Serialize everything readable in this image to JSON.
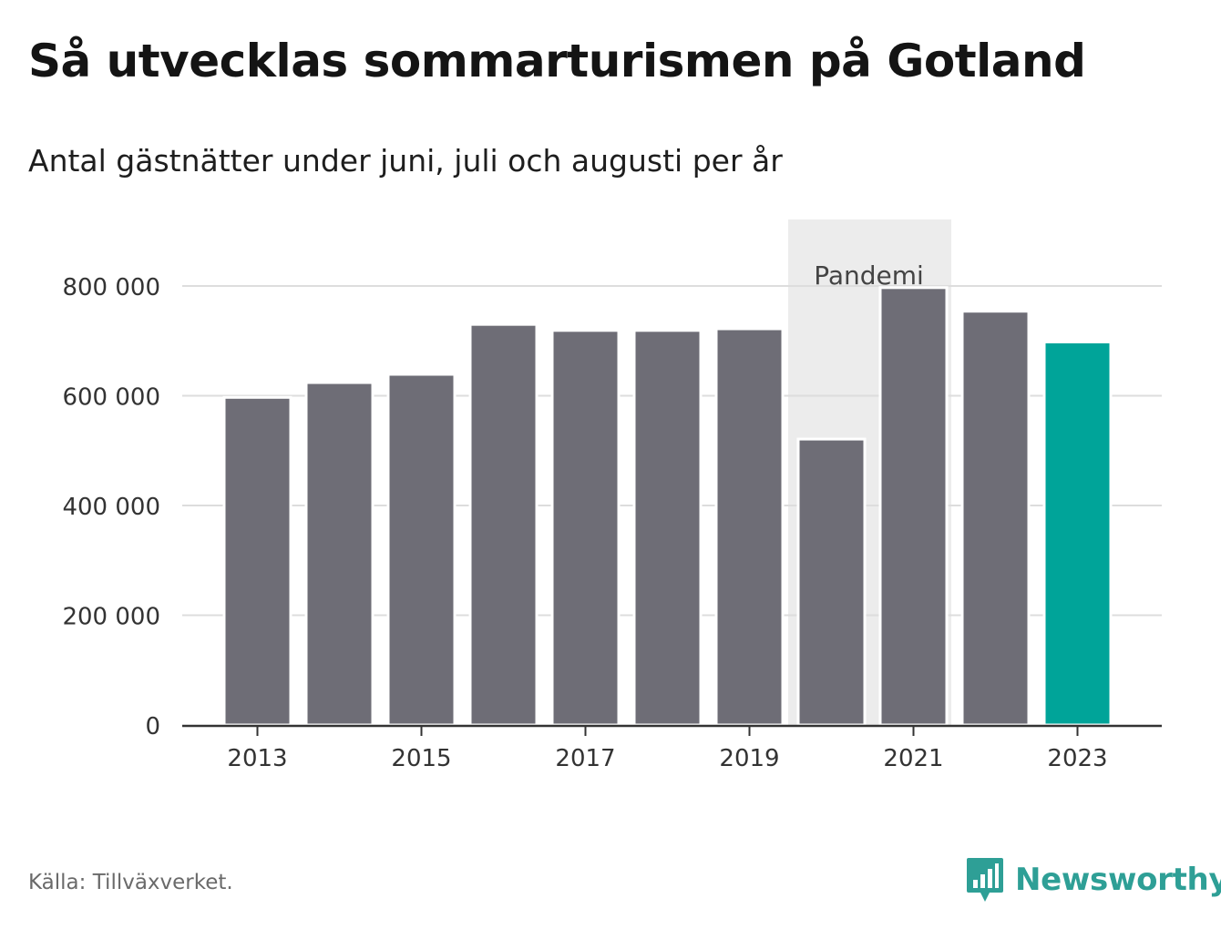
{
  "title": "Så utvecklas sommarturismen på Gotland",
  "subtitle": "Antal gästnätter under juni, juli och augusti per år",
  "source": "Källa: Tillväxverket.",
  "brand": {
    "name": "Newsworthy",
    "icon": "newsworthy-bar-chart-speech-bubble-icon"
  },
  "colors": {
    "bar": "#6e6d76",
    "highlight": "#00a499",
    "band": "#ececec",
    "grid": "#dddddd",
    "axis": "#333333",
    "brand": "#2e9f96"
  },
  "chart_data": {
    "type": "bar",
    "categories": [
      "2013",
      "2014",
      "2015",
      "2016",
      "2017",
      "2018",
      "2019",
      "2020",
      "2021",
      "2022",
      "2023"
    ],
    "values": [
      597000,
      624000,
      639000,
      730000,
      719000,
      719000,
      722000,
      521000,
      797000,
      754000,
      698000
    ],
    "highlight_category": "2023",
    "ylim": [
      0,
      800000
    ],
    "yticks": [
      0,
      200000,
      400000,
      600000,
      800000
    ],
    "ytick_labels": [
      "0",
      "200 000",
      "400 000",
      "600 000",
      "800 000"
    ],
    "xtick_labels": [
      "2013",
      "2015",
      "2017",
      "2019",
      "2021",
      "2023"
    ],
    "xlabel": "",
    "ylabel": "",
    "grid": true,
    "annotation": {
      "label": "Pandemi",
      "from": "2020",
      "to": "2021"
    }
  }
}
